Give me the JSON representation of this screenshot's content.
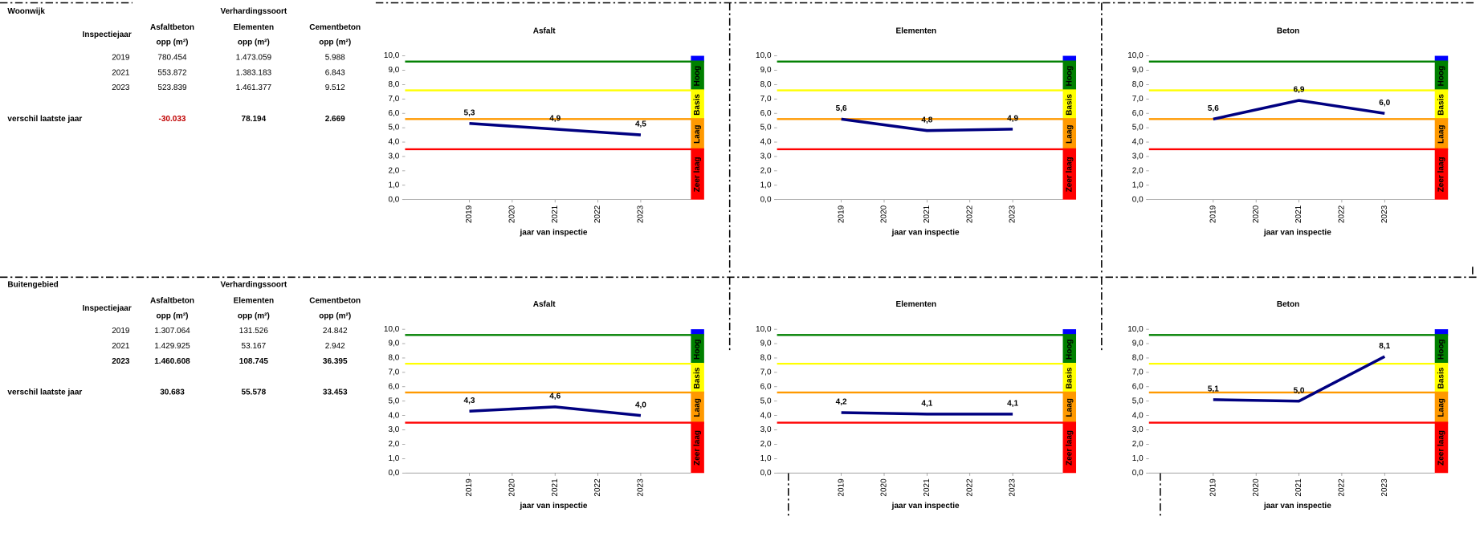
{
  "sections": [
    {
      "title": "Woonwijk",
      "group_header": "Verhardingssoort",
      "year_header": "Inspectiejaar",
      "columns": [
        "Asfaltbeton",
        "Elementen",
        "Cementbeton"
      ],
      "units": [
        "opp (m²)",
        "opp (m²)",
        "opp (m²)"
      ],
      "rows": [
        [
          "2019",
          "780.454",
          "1.473.059",
          "5.988"
        ],
        [
          "2021",
          "553.872",
          "1.383.183",
          "6.843"
        ],
        [
          "2023",
          "523.839",
          "1.461.377",
          "9.512"
        ]
      ],
      "diff_label": "verschil laatste jaar",
      "diff": [
        "-30.033",
        "78.194",
        "2.669"
      ]
    },
    {
      "title": "Buitengebied",
      "group_header": "Verhardingssoort",
      "year_header": "Inspectiejaar",
      "columns": [
        "Asfaltbeton",
        "Elementen",
        "Cementbeton"
      ],
      "units": [
        "opp (m²)",
        "opp (m²)",
        "opp (m²)"
      ],
      "rows": [
        [
          "2019",
          "1.307.064",
          "131.526",
          "24.842"
        ],
        [
          "2021",
          "1.429.925",
          "53.167",
          "2.942"
        ],
        [
          "2023",
          "1.460.608",
          "108.745",
          "36.395"
        ]
      ],
      "diff_label": "verschil laatste jaar",
      "diff": [
        "30.683",
        "55.578",
        "33.453"
      ]
    }
  ],
  "chart_data": [
    {
      "type": "line",
      "title": "Asfalt",
      "x_label": "jaar van inspectie",
      "x": [
        2019,
        2021,
        2023
      ],
      "xlim": [
        2017.5,
        2024.17
      ],
      "xticks": [
        2019,
        2020,
        2021,
        2022,
        2023
      ],
      "series": [
        {
          "color": "#000080",
          "values": [
            5.3,
            4.9,
            4.5
          ],
          "value_labels": [
            "5,3",
            "4,9",
            "4,5"
          ]
        }
      ],
      "ylim": [
        0,
        10
      ],
      "yticks": [
        {
          "value": 0,
          "label": "0,0"
        },
        {
          "value": 1,
          "label": "1,0"
        },
        {
          "value": 2,
          "label": "2,0"
        },
        {
          "value": 3,
          "label": "3,0"
        },
        {
          "value": 4,
          "label": "4,0"
        },
        {
          "value": 5,
          "label": "5,0"
        },
        {
          "value": 6,
          "label": "6,0"
        },
        {
          "value": 7,
          "label": "7,0"
        },
        {
          "value": 8,
          "label": "8,0"
        },
        {
          "value": 9,
          "label": "9,0"
        },
        {
          "value": 10,
          "label": "10,0"
        }
      ],
      "bands": [
        {
          "from": 9.6,
          "to": 10,
          "color": "#0000ff"
        },
        {
          "label": "Hoog",
          "from": 7.6,
          "to": 9.6,
          "color": "#008000"
        },
        {
          "label": "Basis",
          "from": 5.6,
          "to": 7.6,
          "color": "#ffff00"
        },
        {
          "label": "Laag",
          "from": 3.5,
          "to": 5.6,
          "color": "#ff9900"
        },
        {
          "label": "Zeer laag",
          "from": 0,
          "to": 3.5,
          "color": "#ff0000"
        }
      ]
    },
    {
      "type": "line",
      "title": "Elementen",
      "x_label": "jaar van inspectie",
      "x": [
        2019,
        2021,
        2023
      ],
      "xlim": [
        2017.5,
        2024.17
      ],
      "xticks": [
        2019,
        2020,
        2021,
        2022,
        2023
      ],
      "series": [
        {
          "color": "#000080",
          "values": [
            5.6,
            4.8,
            4.9
          ],
          "value_labels": [
            "5,6",
            "4,8",
            "4,9"
          ]
        }
      ],
      "ylim": [
        0,
        10
      ],
      "yticks": [
        {
          "value": 0,
          "label": "0,0"
        },
        {
          "value": 1,
          "label": "1,0"
        },
        {
          "value": 2,
          "label": "2,0"
        },
        {
          "value": 3,
          "label": "3,0"
        },
        {
          "value": 4,
          "label": "4,0"
        },
        {
          "value": 5,
          "label": "5,0"
        },
        {
          "value": 6,
          "label": "6,0"
        },
        {
          "value": 7,
          "label": "7,0"
        },
        {
          "value": 8,
          "label": "8,0"
        },
        {
          "value": 9,
          "label": "9,0"
        },
        {
          "value": 10,
          "label": "10,0"
        }
      ],
      "bands": [
        {
          "from": 9.6,
          "to": 10,
          "color": "#0000ff"
        },
        {
          "label": "Hoog",
          "from": 7.6,
          "to": 9.6,
          "color": "#008000"
        },
        {
          "label": "Basis",
          "from": 5.6,
          "to": 7.6,
          "color": "#ffff00"
        },
        {
          "label": "Laag",
          "from": 3.5,
          "to": 5.6,
          "color": "#ff9900"
        },
        {
          "label": "Zeer laag",
          "from": 0,
          "to": 3.5,
          "color": "#ff0000"
        }
      ]
    },
    {
      "type": "line",
      "title": "Beton",
      "x_label": "jaar van inspectie",
      "x": [
        2019,
        2021,
        2023
      ],
      "xlim": [
        2017.5,
        2024.17
      ],
      "xticks": [
        2019,
        2020,
        2021,
        2022,
        2023
      ],
      "series": [
        {
          "color": "#000080",
          "values": [
            5.6,
            6.9,
            6.0
          ],
          "value_labels": [
            "5,6",
            "6,9",
            "6,0"
          ]
        }
      ],
      "ylim": [
        0,
        10
      ],
      "yticks": [
        {
          "value": 0,
          "label": "0,0"
        },
        {
          "value": 1,
          "label": "1,0"
        },
        {
          "value": 2,
          "label": "2,0"
        },
        {
          "value": 3,
          "label": "3,0"
        },
        {
          "value": 4,
          "label": "4,0"
        },
        {
          "value": 5,
          "label": "5,0"
        },
        {
          "value": 6,
          "label": "6,0"
        },
        {
          "value": 7,
          "label": "7,0"
        },
        {
          "value": 8,
          "label": "8,0"
        },
        {
          "value": 9,
          "label": "9,0"
        },
        {
          "value": 10,
          "label": "10,0"
        }
      ],
      "bands": [
        {
          "from": 9.6,
          "to": 10,
          "color": "#0000ff"
        },
        {
          "label": "Hoog",
          "from": 7.6,
          "to": 9.6,
          "color": "#008000"
        },
        {
          "label": "Basis",
          "from": 5.6,
          "to": 7.6,
          "color": "#ffff00"
        },
        {
          "label": "Laag",
          "from": 3.5,
          "to": 5.6,
          "color": "#ff9900"
        },
        {
          "label": "Zeer laag",
          "from": 0,
          "to": 3.5,
          "color": "#ff0000"
        }
      ]
    },
    {
      "type": "line",
      "title": "Asfalt",
      "x_label": "jaar van inspectie",
      "x": [
        2019,
        2021,
        2023
      ],
      "xlim": [
        2017.5,
        2024.17
      ],
      "xticks": [
        2019,
        2020,
        2021,
        2022,
        2023
      ],
      "series": [
        {
          "color": "#000080",
          "values": [
            4.3,
            4.6,
            4.0
          ],
          "value_labels": [
            "4,3",
            "4,6",
            "4,0"
          ]
        }
      ],
      "ylim": [
        0,
        10
      ],
      "yticks": [
        {
          "value": 0,
          "label": "0,0"
        },
        {
          "value": 1,
          "label": "1,0"
        },
        {
          "value": 2,
          "label": "2,0"
        },
        {
          "value": 3,
          "label": "3,0"
        },
        {
          "value": 4,
          "label": "4,0"
        },
        {
          "value": 5,
          "label": "5,0"
        },
        {
          "value": 6,
          "label": "6,0"
        },
        {
          "value": 7,
          "label": "7,0"
        },
        {
          "value": 8,
          "label": "8,0"
        },
        {
          "value": 9,
          "label": "9,0"
        },
        {
          "value": 10,
          "label": "10,0"
        }
      ],
      "bands": [
        {
          "from": 9.6,
          "to": 10,
          "color": "#0000ff"
        },
        {
          "label": "Hoog",
          "from": 7.6,
          "to": 9.6,
          "color": "#008000"
        },
        {
          "label": "Basis",
          "from": 5.6,
          "to": 7.6,
          "color": "#ffff00"
        },
        {
          "label": "Laag",
          "from": 3.5,
          "to": 5.6,
          "color": "#ff9900"
        },
        {
          "label": "Zeer laag",
          "from": 0,
          "to": 3.5,
          "color": "#ff0000"
        }
      ]
    },
    {
      "type": "line",
      "title": "Elementen",
      "x_label": "jaar van inspectie",
      "x": [
        2019,
        2021,
        2023
      ],
      "xlim": [
        2017.5,
        2024.17
      ],
      "xticks": [
        2019,
        2020,
        2021,
        2022,
        2023
      ],
      "series": [
        {
          "color": "#000080",
          "values": [
            4.2,
            4.1,
            4.1
          ],
          "value_labels": [
            "4,2",
            "4,1",
            "4,1"
          ]
        }
      ],
      "ylim": [
        0,
        10
      ],
      "yticks": [
        {
          "value": 0,
          "label": "0,0"
        },
        {
          "value": 1,
          "label": "1,0"
        },
        {
          "value": 2,
          "label": "2,0"
        },
        {
          "value": 3,
          "label": "3,0"
        },
        {
          "value": 4,
          "label": "4,0"
        },
        {
          "value": 5,
          "label": "5,0"
        },
        {
          "value": 6,
          "label": "6,0"
        },
        {
          "value": 7,
          "label": "7,0"
        },
        {
          "value": 8,
          "label": "8,0"
        },
        {
          "value": 9,
          "label": "9,0"
        },
        {
          "value": 10,
          "label": "10,0"
        }
      ],
      "bands": [
        {
          "from": 9.6,
          "to": 10,
          "color": "#0000ff"
        },
        {
          "label": "Hoog",
          "from": 7.6,
          "to": 9.6,
          "color": "#008000"
        },
        {
          "label": "Basis",
          "from": 5.6,
          "to": 7.6,
          "color": "#ffff00"
        },
        {
          "label": "Laag",
          "from": 3.5,
          "to": 5.6,
          "color": "#ff9900"
        },
        {
          "label": "Zeer laag",
          "from": 0,
          "to": 3.5,
          "color": "#ff0000"
        }
      ]
    },
    {
      "type": "line",
      "title": "Beton",
      "x_label": "jaar van inspectie",
      "x": [
        2019,
        2021,
        2023
      ],
      "xlim": [
        2017.5,
        2024.17
      ],
      "xticks": [
        2019,
        2020,
        2021,
        2022,
        2023
      ],
      "series": [
        {
          "color": "#000080",
          "values": [
            5.1,
            5.0,
            8.1
          ],
          "value_labels": [
            "5,1",
            "5,0",
            "8,1"
          ]
        }
      ],
      "ylim": [
        0,
        10
      ],
      "yticks": [
        {
          "value": 0,
          "label": "0,0"
        },
        {
          "value": 1,
          "label": "1,0"
        },
        {
          "value": 2,
          "label": "2,0"
        },
        {
          "value": 3,
          "label": "3,0"
        },
        {
          "value": 4,
          "label": "4,0"
        },
        {
          "value": 5,
          "label": "5,0"
        },
        {
          "value": 6,
          "label": "6,0"
        },
        {
          "value": 7,
          "label": "7,0"
        },
        {
          "value": 8,
          "label": "8,0"
        },
        {
          "value": 9,
          "label": "9,0"
        },
        {
          "value": 10,
          "label": "10,0"
        }
      ],
      "bands": [
        {
          "from": 9.6,
          "to": 10,
          "color": "#0000ff"
        },
        {
          "label": "Hoog",
          "from": 7.6,
          "to": 9.6,
          "color": "#008000"
        },
        {
          "label": "Basis",
          "from": 5.6,
          "to": 7.6,
          "color": "#ffff00"
        },
        {
          "label": "Laag",
          "from": 3.5,
          "to": 5.6,
          "color": "#ff9900"
        },
        {
          "label": "Zeer laag",
          "from": 0,
          "to": 3.5,
          "color": "#ff0000"
        }
      ]
    }
  ]
}
